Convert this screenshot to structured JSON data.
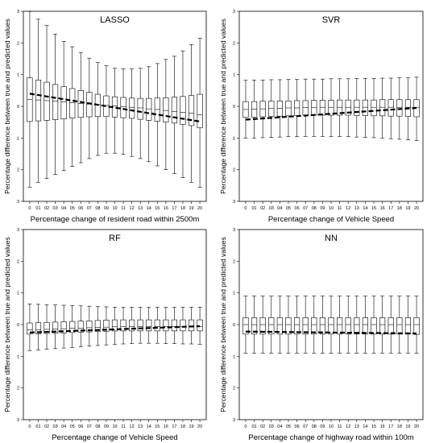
{
  "chart_data": [
    {
      "type": "box",
      "title": "LASSO",
      "xlabel": "Percentage change of resident road within 2500m",
      "ylabel": "Percentage difference between true and predicted values",
      "ylim": [
        -3,
        3
      ],
      "yticks": [
        "3",
        "2",
        "1",
        "0",
        "1",
        "2",
        "3"
      ],
      "categories": [
        "0",
        "01",
        "02",
        "03",
        "04",
        "05",
        "06",
        "07",
        "08",
        "09",
        "10",
        "11",
        "12",
        "13",
        "14",
        "15",
        "16",
        "17",
        "18",
        "19",
        "20"
      ],
      "q1": [
        -0.48,
        -0.46,
        -0.44,
        -0.42,
        -0.4,
        -0.37,
        -0.35,
        -0.33,
        -0.32,
        -0.32,
        -0.34,
        -0.36,
        -0.38,
        -0.41,
        -0.44,
        -0.47,
        -0.5,
        -0.53,
        -0.57,
        -0.61,
        -0.68
      ],
      "median": [
        0.22,
        0.2,
        0.18,
        0.16,
        0.14,
        0.11,
        0.09,
        0.07,
        0.05,
        0.03,
        0.01,
        -0.01,
        -0.03,
        -0.05,
        -0.08,
        -0.1,
        -0.13,
        -0.16,
        -0.19,
        -0.22,
        -0.27
      ],
      "q3": [
        0.9,
        0.83,
        0.76,
        0.69,
        0.62,
        0.56,
        0.5,
        0.44,
        0.38,
        0.33,
        0.3,
        0.28,
        0.26,
        0.25,
        0.25,
        0.26,
        0.27,
        0.29,
        0.31,
        0.34,
        0.38
      ],
      "whisker_low": [
        -2.55,
        -2.4,
        -2.28,
        -2.15,
        -2.03,
        -1.9,
        -1.78,
        -1.65,
        -1.55,
        -1.48,
        -1.48,
        -1.52,
        -1.58,
        -1.65,
        -1.75,
        -1.88,
        -2.0,
        -2.12,
        -2.25,
        -2.4,
        -2.55
      ],
      "whisker_high": [
        3.0,
        2.75,
        2.55,
        2.28,
        2.05,
        1.88,
        1.7,
        1.52,
        1.38,
        1.28,
        1.2,
        1.18,
        1.18,
        1.2,
        1.25,
        1.35,
        1.48,
        1.58,
        1.75,
        1.95,
        2.15
      ],
      "trend": [
        0.4,
        -0.48
      ],
      "trend_color": "#000000"
    },
    {
      "type": "box",
      "title": "SVR",
      "xlabel": "Percentage change of Vehicle Speed",
      "ylabel": "Percentage difference between true and predicted values",
      "ylim": [
        -3,
        3
      ],
      "yticks": [
        "3",
        "2",
        "1",
        "0",
        "1",
        "2",
        "3"
      ],
      "categories": [
        "0",
        "01",
        "02",
        "03",
        "04",
        "05",
        "06",
        "07",
        "08",
        "09",
        "10",
        "11",
        "12",
        "13",
        "14",
        "15",
        "16",
        "17",
        "18",
        "19",
        "20"
      ],
      "q1": [
        -0.35,
        -0.34,
        -0.33,
        -0.32,
        -0.31,
        -0.3,
        -0.29,
        -0.28,
        -0.28,
        -0.28,
        -0.28,
        -0.28,
        -0.28,
        -0.29,
        -0.29,
        -0.3,
        -0.3,
        -0.31,
        -0.31,
        -0.32,
        -0.33
      ],
      "median": [
        -0.1,
        -0.09,
        -0.08,
        -0.07,
        -0.06,
        -0.05,
        -0.05,
        -0.04,
        -0.04,
        -0.03,
        -0.03,
        -0.03,
        -0.03,
        -0.03,
        -0.03,
        -0.03,
        -0.03,
        -0.03,
        -0.03,
        -0.03,
        -0.03
      ],
      "q3": [
        0.15,
        0.15,
        0.16,
        0.16,
        0.17,
        0.17,
        0.18,
        0.18,
        0.19,
        0.19,
        0.19,
        0.2,
        0.2,
        0.2,
        0.2,
        0.2,
        0.21,
        0.21,
        0.21,
        0.21,
        0.21
      ],
      "whisker_low": [
        -1.0,
        -1.0,
        -0.99,
        -0.98,
        -0.97,
        -0.96,
        -0.96,
        -0.95,
        -0.95,
        -0.95,
        -0.95,
        -0.95,
        -0.96,
        -0.97,
        -0.98,
        -0.99,
        -1.0,
        -1.02,
        -1.04,
        -1.06,
        -1.08
      ],
      "whisker_high": [
        0.82,
        0.83,
        0.83,
        0.84,
        0.84,
        0.85,
        0.85,
        0.86,
        0.86,
        0.86,
        0.87,
        0.87,
        0.87,
        0.88,
        0.88,
        0.88,
        0.89,
        0.89,
        0.9,
        0.9,
        0.92
      ],
      "trend": [
        -0.42,
        -0.05
      ],
      "trend_color": "#000000"
    },
    {
      "type": "box",
      "title": "RF",
      "xlabel": "Percentage change of Vehicle Speed",
      "ylabel": "Percentage difference between true and predicted values",
      "ylim": [
        -3,
        3
      ],
      "yticks": [
        "3",
        "2",
        "1",
        "0",
        "1",
        "2",
        "3"
      ],
      "categories": [
        "0",
        "01",
        "02",
        "03",
        "04",
        "05",
        "06",
        "07",
        "08",
        "09",
        "10",
        "11",
        "12",
        "13",
        "14",
        "15",
        "16",
        "17",
        "18",
        "19",
        "20"
      ],
      "q1": [
        -0.3,
        -0.29,
        -0.28,
        -0.27,
        -0.26,
        -0.25,
        -0.24,
        -0.23,
        -0.22,
        -0.21,
        -0.2,
        -0.2,
        -0.2,
        -0.2,
        -0.2,
        -0.2,
        -0.2,
        -0.2,
        -0.2,
        -0.2,
        -0.2
      ],
      "median": [
        -0.17,
        -0.16,
        -0.15,
        -0.14,
        -0.13,
        -0.12,
        -0.11,
        -0.1,
        -0.09,
        -0.08,
        -0.07,
        -0.06,
        -0.06,
        -0.06,
        -0.06,
        -0.06,
        -0.06,
        -0.06,
        -0.06,
        -0.06,
        -0.06
      ],
      "q3": [
        0.05,
        0.06,
        0.07,
        0.08,
        0.09,
        0.1,
        0.11,
        0.12,
        0.13,
        0.14,
        0.15,
        0.15,
        0.15,
        0.15,
        0.15,
        0.15,
        0.15,
        0.15,
        0.15,
        0.15,
        0.15
      ],
      "whisker_low": [
        -0.82,
        -0.8,
        -0.78,
        -0.76,
        -0.74,
        -0.72,
        -0.7,
        -0.68,
        -0.66,
        -0.64,
        -0.62,
        -0.61,
        -0.6,
        -0.59,
        -0.59,
        -0.59,
        -0.6,
        -0.6,
        -0.61,
        -0.61,
        -0.62
      ],
      "whisker_high": [
        0.65,
        0.64,
        0.63,
        0.62,
        0.61,
        0.6,
        0.59,
        0.58,
        0.57,
        0.56,
        0.55,
        0.55,
        0.55,
        0.55,
        0.55,
        0.55,
        0.55,
        0.55,
        0.55,
        0.55,
        0.55
      ],
      "trend": [
        -0.25,
        -0.05
      ],
      "trend_color": "#000000"
    },
    {
      "type": "box",
      "title": "NN",
      "xlabel": "Percentage change of highway road within 100m",
      "ylabel": "Percentage difference between true and predicted values",
      "ylim": [
        -3,
        3
      ],
      "yticks": [
        "3",
        "2",
        "1",
        "0",
        "1",
        "2",
        "3"
      ],
      "categories": [
        "0",
        "01",
        "02",
        "03",
        "04",
        "05",
        "06",
        "07",
        "08",
        "09",
        "10",
        "11",
        "12",
        "13",
        "14",
        "15",
        "16",
        "17",
        "18",
        "19",
        "20"
      ],
      "q1": [
        -0.3,
        -0.3,
        -0.3,
        -0.3,
        -0.3,
        -0.3,
        -0.3,
        -0.3,
        -0.3,
        -0.3,
        -0.3,
        -0.3,
        -0.3,
        -0.3,
        -0.3,
        -0.3,
        -0.3,
        -0.3,
        -0.3,
        -0.3,
        -0.31
      ],
      "median": [
        0.0,
        0.0,
        0.0,
        0.0,
        0.0,
        0.0,
        0.0,
        0.0,
        0.0,
        0.0,
        0.0,
        0.0,
        0.0,
        0.0,
        0.0,
        0.0,
        0.0,
        0.0,
        0.0,
        0.0,
        0.0
      ],
      "q3": [
        0.22,
        0.22,
        0.22,
        0.22,
        0.22,
        0.22,
        0.22,
        0.22,
        0.22,
        0.22,
        0.22,
        0.22,
        0.22,
        0.22,
        0.22,
        0.22,
        0.22,
        0.22,
        0.22,
        0.22,
        0.22
      ],
      "whisker_low": [
        -0.9,
        -0.9,
        -0.9,
        -0.9,
        -0.9,
        -0.9,
        -0.9,
        -0.9,
        -0.9,
        -0.9,
        -0.9,
        -0.9,
        -0.9,
        -0.9,
        -0.9,
        -0.9,
        -0.9,
        -0.9,
        -0.9,
        -0.9,
        -0.9
      ],
      "whisker_high": [
        0.9,
        0.9,
        0.9,
        0.9,
        0.9,
        0.9,
        0.9,
        0.9,
        0.9,
        0.9,
        0.9,
        0.9,
        0.9,
        0.9,
        0.9,
        0.9,
        0.9,
        0.9,
        0.9,
        0.9,
        0.9
      ],
      "trend": [
        -0.22,
        -0.28
      ],
      "trend_color": "#000000"
    }
  ]
}
